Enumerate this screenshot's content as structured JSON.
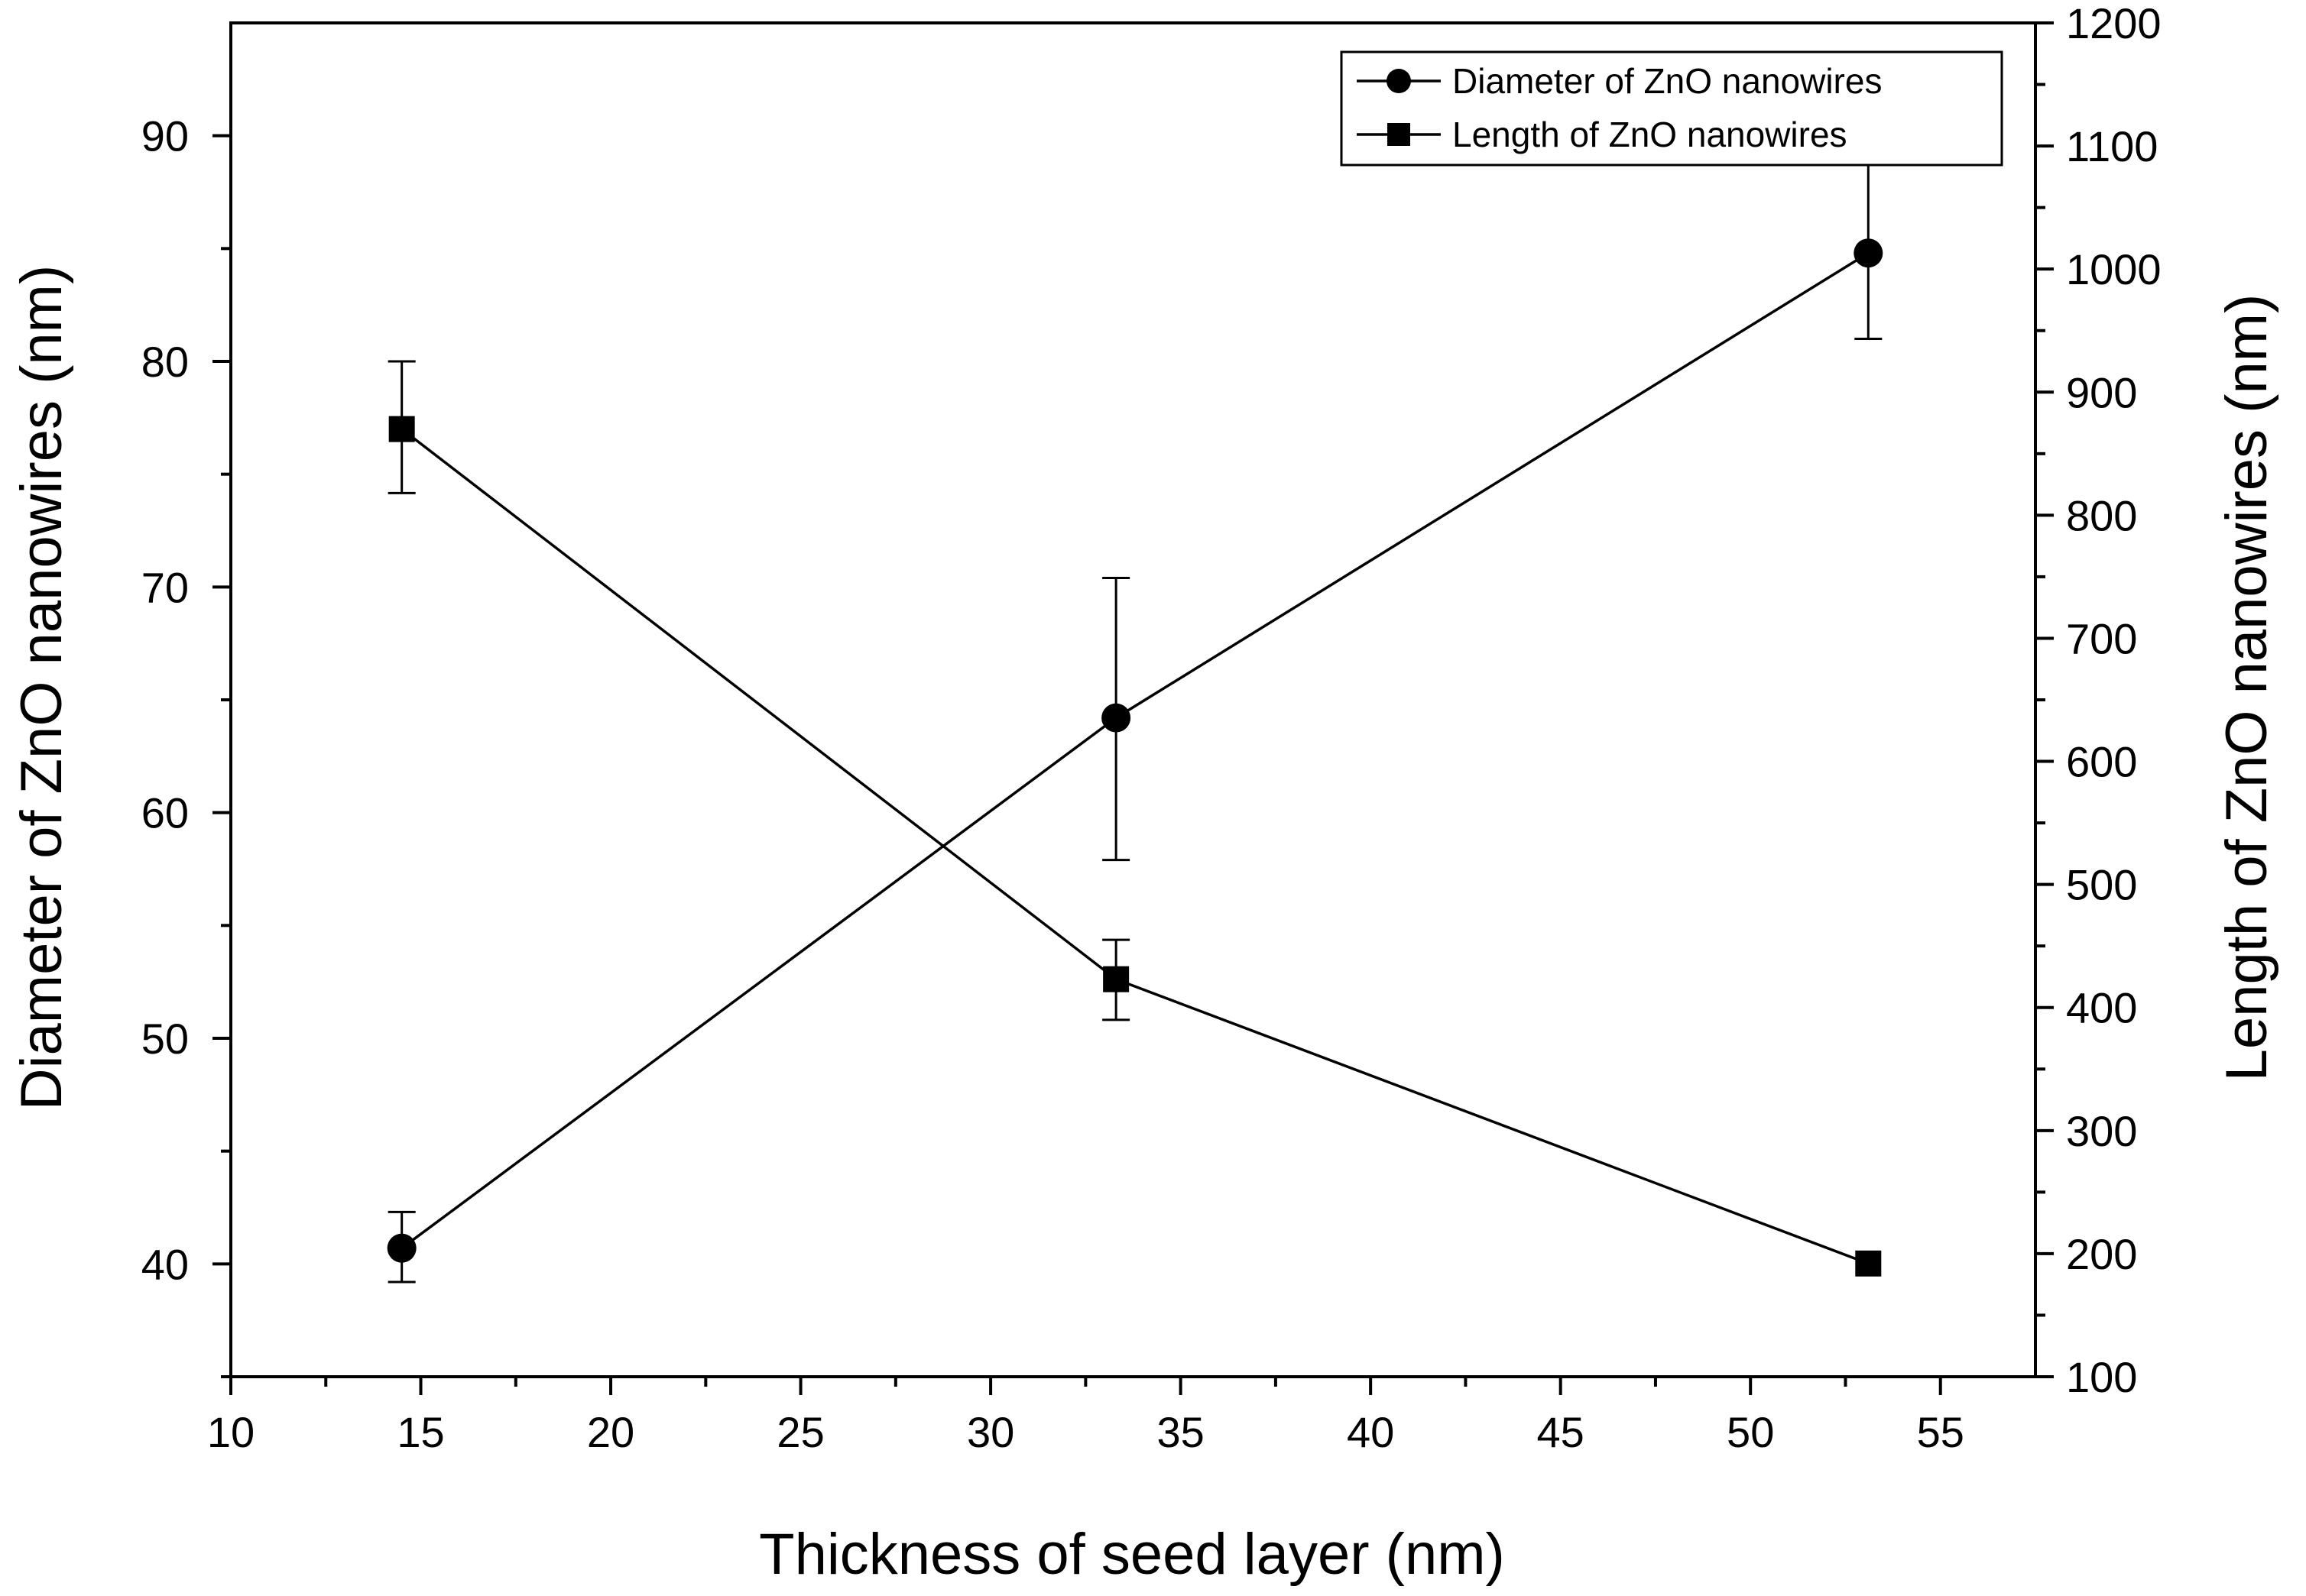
{
  "chart_data": {
    "type": "line",
    "xlabel": "Thickness of seed layer (nm)",
    "ylabel": "Diameter of ZnO nanowires (nm)",
    "y2label": "Length of ZnO nanowires (nm)",
    "xlim": [
      10,
      57.5
    ],
    "ylim": [
      35,
      95
    ],
    "y2lim": [
      100,
      1200
    ],
    "x_ticks": [
      10,
      15,
      20,
      25,
      30,
      35,
      40,
      45,
      50,
      55
    ],
    "y_ticks": [
      40,
      50,
      60,
      70,
      80,
      90
    ],
    "y2_ticks": [
      100,
      200,
      300,
      400,
      500,
      600,
      700,
      800,
      900,
      1000,
      1100,
      1200
    ],
    "legend_position": "top-right",
    "series": [
      {
        "name": "Diameter of ZnO nanowires",
        "axis": "left",
        "marker": "circle",
        "x": [
          14.5,
          33.3,
          53.1
        ],
        "values": [
          40.7,
          64.2,
          84.8
        ],
        "err_low": [
          39.2,
          57.9,
          81.0
        ],
        "err_high": [
          42.3,
          70.4,
          88.7
        ]
      },
      {
        "name": "Length of ZnO nanowires",
        "axis": "right",
        "marker": "square",
        "x": [
          14.5,
          33.3,
          53.1
        ],
        "values": [
          870,
          423,
          192
        ],
        "err_low": [
          818,
          390,
          192
        ],
        "err_high": [
          925,
          455,
          192
        ]
      }
    ]
  }
}
